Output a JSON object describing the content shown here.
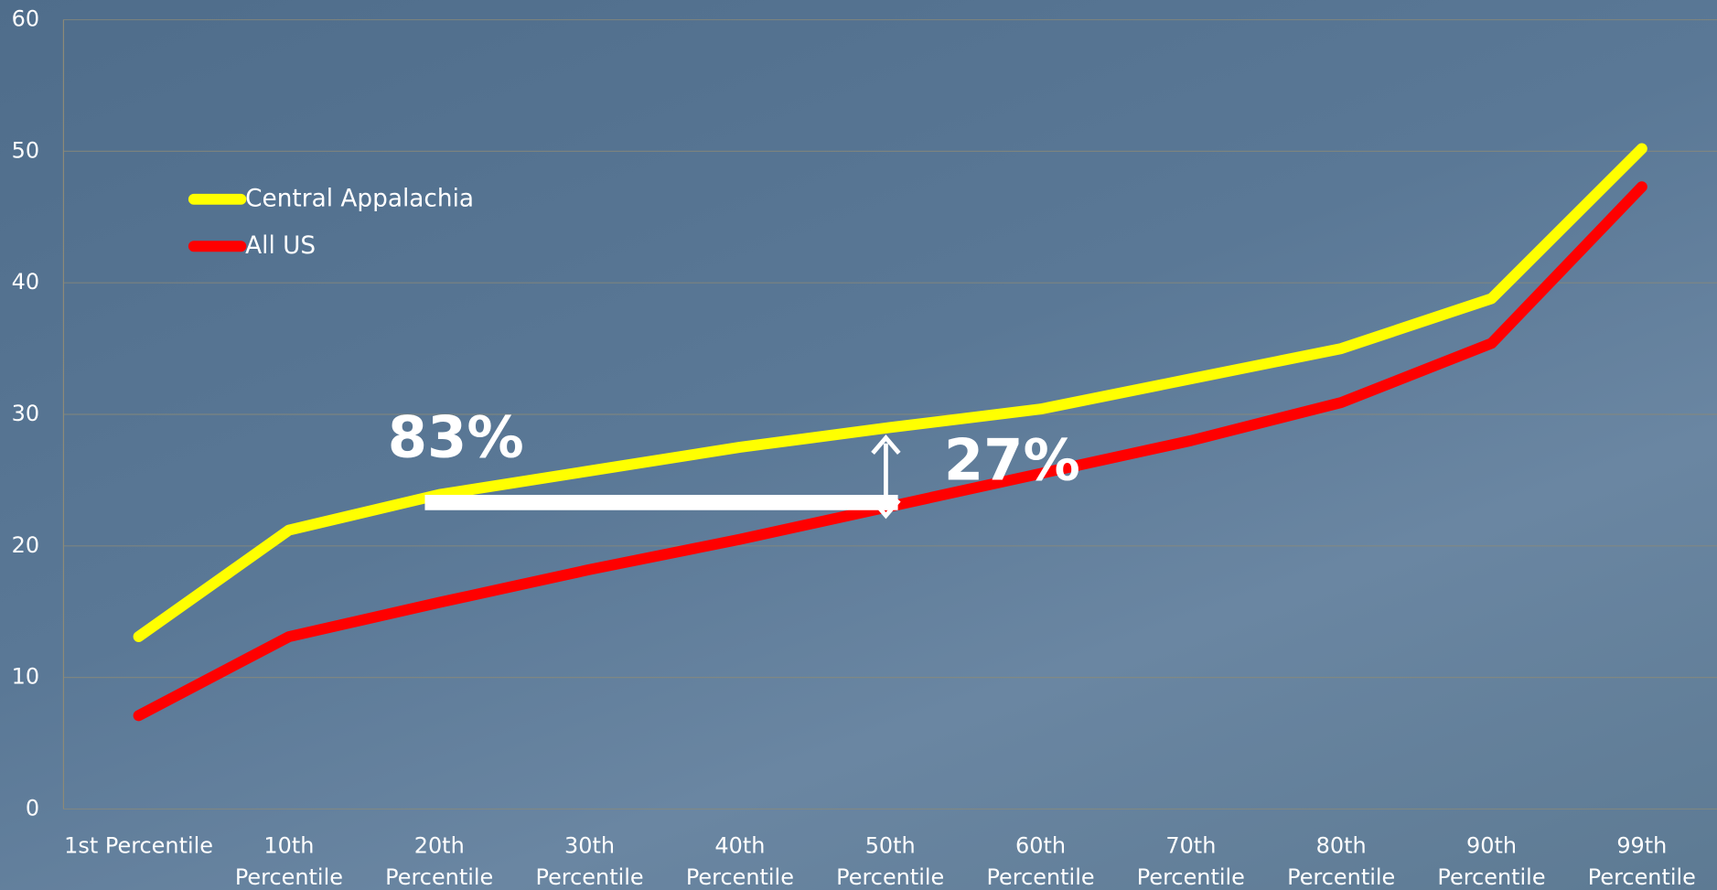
{
  "chart_data": {
    "type": "line",
    "categories": [
      "1st Percentile",
      "10th Percentile",
      "20th Percentile",
      "30th Percentile",
      "40th Percentile",
      "50th Percentile",
      "60th Percentile",
      "70th Percentile",
      "80th Percentile",
      "90th Percentile",
      "99th Percentile"
    ],
    "series": [
      {
        "name": "Central Appalachia",
        "color": "#ffff00",
        "values": [
          13.1,
          21.2,
          23.9,
          25.7,
          27.5,
          29.0,
          30.4,
          32.7,
          35.0,
          38.8,
          50.2
        ]
      },
      {
        "name": "All US",
        "color": "#ff0000",
        "values": [
          7.1,
          13.1,
          15.7,
          18.2,
          20.5,
          23.0,
          25.5,
          28.0,
          30.9,
          35.4,
          47.3
        ]
      }
    ],
    "annotations": [
      "83%",
      "27%"
    ],
    "ylim": [
      0,
      60
    ],
    "yticks": [
      0,
      10,
      20,
      30,
      40,
      50,
      60
    ],
    "grid": true
  }
}
